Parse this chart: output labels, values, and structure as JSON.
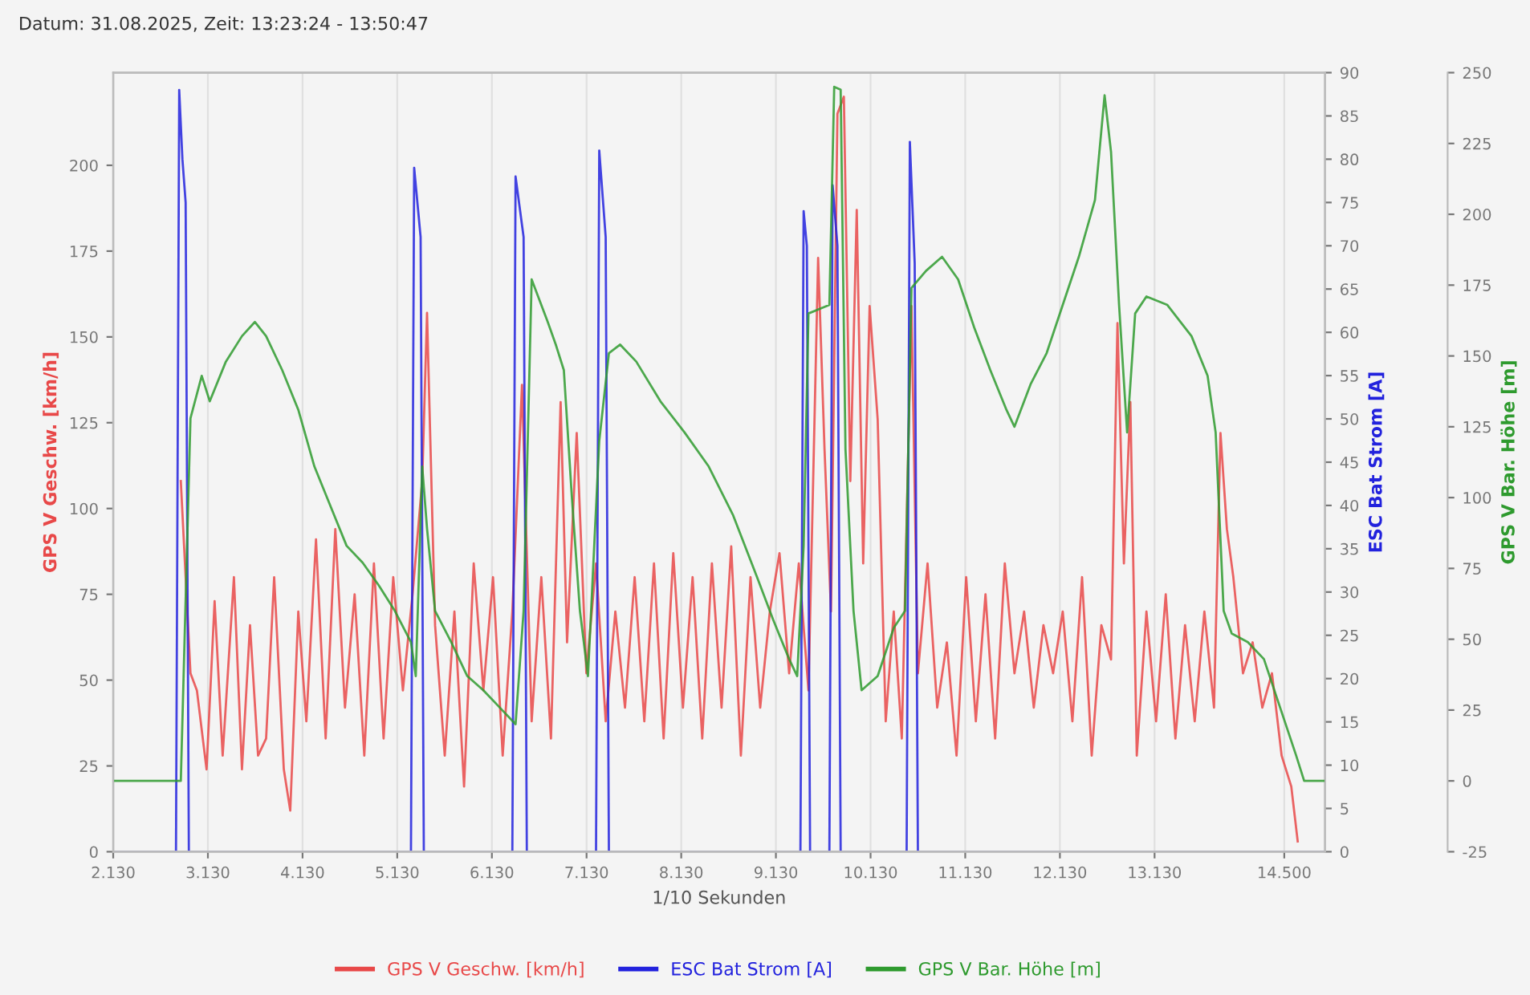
{
  "chart_data": {
    "type": "line",
    "title": "Datum: 31.08.2025, Zeit: 13:23:24 - 13:50:47",
    "xlabel": "1/10 Sekunden",
    "ylabel": "GPS V Geschw. [km/h]",
    "y2label": "ESC Bat Strom [A]",
    "y3label": "GPS V Bar. Höhe [m]",
    "xlim": [
      2130,
      14930
    ],
    "xticks": [
      {
        "value": 2130,
        "label": "2.130"
      },
      {
        "value": 3130,
        "label": "3.130"
      },
      {
        "value": 4130,
        "label": "4.130"
      },
      {
        "value": 5130,
        "label": "5.130"
      },
      {
        "value": 6130,
        "label": "6.130"
      },
      {
        "value": 7130,
        "label": "7.130"
      },
      {
        "value": 8130,
        "label": "8.130"
      },
      {
        "value": 9130,
        "label": "9.130"
      },
      {
        "value": 10130,
        "label": "10.130"
      },
      {
        "value": 11130,
        "label": "11.130"
      },
      {
        "value": 12130,
        "label": "12.130"
      },
      {
        "value": 13130,
        "label": "13.130"
      },
      {
        "value": 14500,
        "label": "14.500"
      }
    ],
    "ylim": [
      0,
      227
    ],
    "yticks": [
      0,
      25,
      50,
      75,
      100,
      125,
      150,
      175,
      200
    ],
    "y2lim": [
      0,
      90
    ],
    "y2ticks": [
      0,
      5,
      10,
      15,
      20,
      25,
      30,
      35,
      40,
      45,
      50,
      55,
      60,
      65,
      70,
      75,
      80,
      85,
      90
    ],
    "y3lim": [
      -25,
      250
    ],
    "y3ticks": [
      -25,
      0,
      25,
      50,
      75,
      100,
      125,
      150,
      175,
      200,
      225,
      250
    ],
    "grid": "x",
    "legend": "bottom",
    "series": [
      {
        "name": "GPS V Geschw. [km/h]",
        "color": "#e84848",
        "x": [
          2844,
          2946,
          3014,
          3116,
          3201,
          3286,
          3405,
          3490,
          3575,
          3660,
          3745,
          3830,
          3932,
          4000,
          4085,
          4170,
          4272,
          4374,
          4476,
          4578,
          4680,
          4782,
          4884,
          4986,
          5088,
          5190,
          5292,
          5394,
          5445,
          5530,
          5632,
          5734,
          5836,
          5938,
          6040,
          6142,
          6244,
          6346,
          6448,
          6550,
          6652,
          6754,
          6856,
          6924,
          7026,
          7128,
          7230,
          7332,
          7434,
          7536,
          7638,
          7740,
          7842,
          7944,
          8046,
          8148,
          8250,
          8352,
          8454,
          8556,
          8658,
          8760,
          8862,
          8964,
          9066,
          9168,
          9270,
          9372,
          9474,
          9576,
          9644,
          9712,
          9780,
          9848,
          9916,
          9984,
          10052,
          10120,
          10205,
          10290,
          10375,
          10460,
          10562,
          10630,
          10732,
          10834,
          10936,
          11038,
          11140,
          11242,
          11344,
          11446,
          11548,
          11650,
          11752,
          11854,
          11956,
          12058,
          12160,
          12262,
          12364,
          12466,
          12568,
          12670,
          12738,
          12806,
          12874,
          12942,
          13044,
          13146,
          13248,
          13350,
          13452,
          13554,
          13656,
          13758,
          13826,
          13894,
          13962,
          14064,
          14166,
          14268,
          14370,
          14472,
          14574,
          14642
        ],
        "values": [
          108,
          52,
          47,
          24,
          73,
          28,
          80,
          24,
          66,
          28,
          33,
          80,
          24,
          12,
          70,
          38,
          91,
          33,
          94,
          42,
          75,
          28,
          84,
          33,
          80,
          47,
          75,
          108,
          157,
          66,
          28,
          70,
          19,
          84,
          47,
          80,
          28,
          70,
          136,
          38,
          80,
          33,
          131,
          61,
          122,
          52,
          84,
          38,
          70,
          42,
          80,
          38,
          84,
          33,
          87,
          42,
          80,
          33,
          84,
          42,
          89,
          28,
          80,
          42,
          70,
          87,
          52,
          84,
          47,
          173,
          117,
          70,
          215,
          220,
          108,
          187,
          84,
          159,
          126,
          38,
          70,
          33,
          159,
          52,
          84,
          42,
          61,
          28,
          80,
          38,
          75,
          33,
          84,
          52,
          70,
          42,
          66,
          52,
          70,
          38,
          80,
          28,
          66,
          56,
          154,
          84,
          131,
          28,
          70,
          38,
          75,
          33,
          66,
          38,
          70,
          42,
          122,
          94,
          80,
          52,
          61,
          42,
          52,
          28,
          19,
          3
        ]
      },
      {
        "name": "ESC Bat Strom [A]",
        "color": "#2222dd",
        "axis": "y2",
        "x": [
          2130,
          2793,
          2827,
          2861,
          2895,
          2929,
          5275,
          5309,
          5377,
          5411,
          6346,
          6380,
          6465,
          6499,
          7230,
          7264,
          7332,
          7366,
          9389,
          9423,
          9457,
          9491,
          9695,
          9729,
          9780,
          9814,
          10511,
          10545,
          10596,
          10630,
          14914
        ],
        "values": [
          0,
          0,
          88,
          80,
          75,
          0,
          0,
          79,
          71,
          0,
          0,
          78,
          71,
          0,
          0,
          81,
          71,
          0,
          0,
          74,
          70,
          0,
          0,
          77,
          70,
          0,
          0,
          82,
          68,
          0,
          0
        ]
      },
      {
        "name": "GPS V Bar. Höhe [m]",
        "color": "#2e9a2e",
        "axis": "y3",
        "x": [
          2130,
          2844,
          2946,
          3065,
          3150,
          3320,
          3490,
          3626,
          3745,
          3915,
          4085,
          4255,
          4425,
          4595,
          4765,
          4935,
          5105,
          5275,
          5326,
          5394,
          5445,
          5530,
          5700,
          5870,
          6040,
          6210,
          6380,
          6465,
          6550,
          6720,
          6805,
          6890,
          6975,
          7060,
          7145,
          7264,
          7366,
          7485,
          7655,
          7910,
          8165,
          8420,
          8675,
          8930,
          9100,
          9270,
          9355,
          9423,
          9474,
          9695,
          9746,
          9814,
          9865,
          9950,
          10035,
          10205,
          10375,
          10494,
          10562,
          10715,
          10885,
          11055,
          11225,
          11395,
          11565,
          11650,
          11820,
          11990,
          12160,
          12330,
          12500,
          12602,
          12670,
          12755,
          12840,
          12925,
          13044,
          13265,
          13520,
          13690,
          13775,
          13860,
          13945,
          14115,
          14285,
          14455,
          14625,
          14710,
          14914
        ],
        "values": [
          0,
          0,
          128,
          143,
          134,
          148,
          157,
          162,
          157,
          145,
          131,
          111,
          97,
          83,
          77,
          69,
          60,
          49,
          37,
          111,
          89,
          60,
          49,
          37,
          32,
          26,
          20,
          60,
          177,
          162,
          154,
          145,
          100,
          60,
          37,
          120,
          151,
          154,
          148,
          134,
          123,
          111,
          94,
          72,
          57,
          43,
          37,
          83,
          165,
          168,
          245,
          244,
          117,
          60,
          32,
          37,
          54,
          60,
          174,
          180,
          185,
          177,
          160,
          145,
          131,
          125,
          140,
          151,
          168,
          185,
          205,
          242,
          222,
          168,
          123,
          165,
          171,
          168,
          157,
          143,
          123,
          60,
          52,
          49,
          43,
          26,
          9,
          0,
          0
        ]
      }
    ]
  }
}
